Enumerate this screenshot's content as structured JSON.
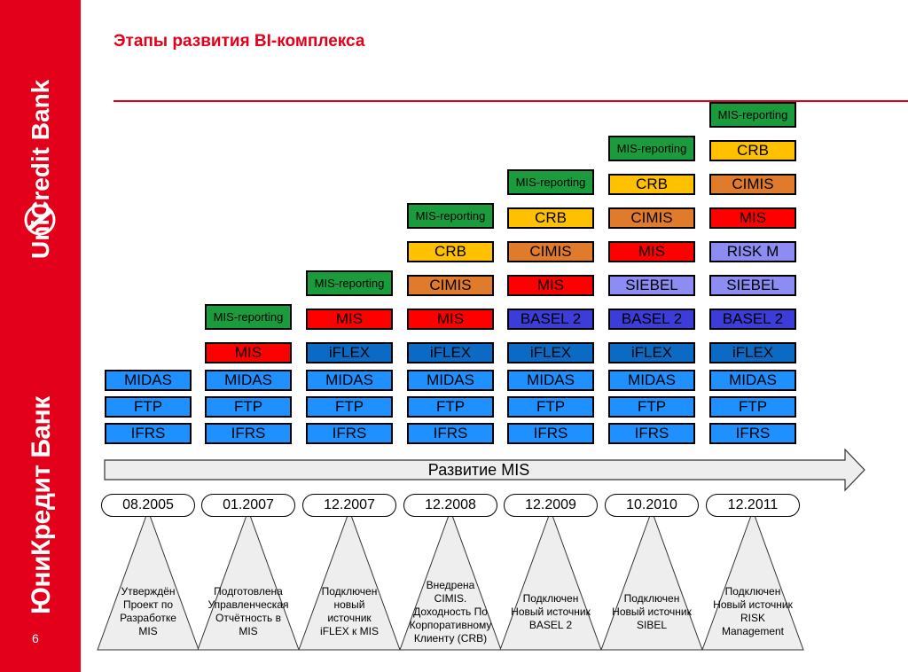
{
  "sidebar": {
    "brand_en": "UniCredit Bank",
    "brand_ru": "ЮниКредит Банк",
    "page_number": "6",
    "color": "#e2001a"
  },
  "header": {
    "title": "Этапы развития BI-комплекса"
  },
  "colors": {
    "IFRS": "#1e90ff",
    "FTP": "#1e90ff",
    "MIDAS": "#1e90ff",
    "iFLEX": "#0b6bc4",
    "MIS": "#ff0000",
    "MIS-reporting": "#1a9c3c",
    "CIMIS": "#e07b2c",
    "CRB": "#ffc000",
    "BASEL 2": "#3c3cd8",
    "SIEBEL": "#8c8cf2",
    "RISK M": "#8c8cf2"
  },
  "columns": [
    {
      "date": "08.2005",
      "stack": [
        "IFRS",
        "FTP",
        "MIDAS"
      ],
      "description": [
        "Утверждён",
        "Проект по",
        "Разработке",
        "MIS"
      ]
    },
    {
      "date": "01.2007",
      "stack": [
        "IFRS",
        "FTP",
        "MIDAS",
        "MIS",
        "MIS-reporting"
      ],
      "description": [
        "Подготовлена",
        "Управленческая",
        "Отчётность в",
        "MIS"
      ]
    },
    {
      "date": "12.2007",
      "stack": [
        "IFRS",
        "FTP",
        "MIDAS",
        "iFLEX",
        "MIS",
        "MIS-reporting"
      ],
      "description": [
        "Подключен",
        "новый",
        "источник",
        "iFLEX к MIS"
      ]
    },
    {
      "date": "12.2008",
      "stack": [
        "IFRS",
        "FTP",
        "MIDAS",
        "iFLEX",
        "MIS",
        "CIMIS",
        "CRB",
        "MIS-reporting"
      ],
      "description": [
        "Внедрена",
        "CIMIS.",
        "Доходность По",
        "Корпоративному",
        "Клиенту (CRB)"
      ]
    },
    {
      "date": "12.2009",
      "stack": [
        "IFRS",
        "FTP",
        "MIDAS",
        "iFLEX",
        "BASEL 2",
        "MIS",
        "CIMIS",
        "CRB",
        "MIS-reporting"
      ],
      "description": [
        "Подключен",
        "Новый источник",
        "BASEL 2"
      ]
    },
    {
      "date": "10.2010",
      "stack": [
        "IFRS",
        "FTP",
        "MIDAS",
        "iFLEX",
        "BASEL 2",
        "SIEBEL",
        "MIS",
        "CIMIS",
        "CRB",
        "MIS-reporting"
      ],
      "description": [
        "Подключен",
        "Новый источник",
        "SIBEL"
      ]
    },
    {
      "date": "12.2011",
      "stack": [
        "IFRS",
        "FTP",
        "MIDAS",
        "iFLEX",
        "BASEL 2",
        "SIEBEL",
        "RISK M",
        "MIS",
        "CIMIS",
        "CRB",
        "MIS-reporting"
      ],
      "description": [
        "Подключен",
        "Новый источник",
        "RISK",
        "Management"
      ]
    }
  ],
  "timeline": {
    "label": "Развитие MIS"
  }
}
